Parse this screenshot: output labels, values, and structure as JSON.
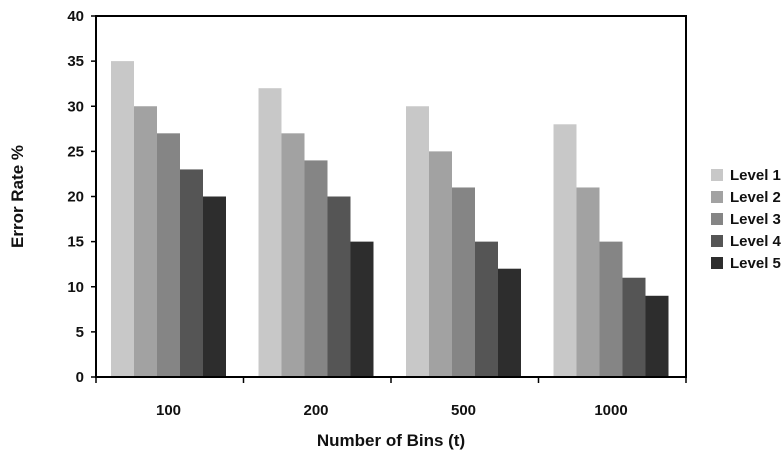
{
  "chart_data": {
    "type": "bar",
    "title": "",
    "xlabel": "Number of Bins (t)",
    "ylabel": "Error Rate %",
    "categories": [
      "100",
      "200",
      "500",
      "1000"
    ],
    "ylim": [
      0,
      40
    ],
    "yticks": [
      0,
      5,
      10,
      15,
      20,
      25,
      30,
      35,
      40
    ],
    "grid": false,
    "legend_position": "right",
    "series": [
      {
        "name": "Level 1",
        "color": "#c8c8c8",
        "values": [
          35,
          32,
          30,
          28
        ]
      },
      {
        "name": "Level 2",
        "color": "#a2a2a2",
        "values": [
          30,
          27,
          25,
          21
        ]
      },
      {
        "name": "Level 3",
        "color": "#858585",
        "values": [
          27,
          24,
          21,
          15
        ]
      },
      {
        "name": "Level 4",
        "color": "#555555",
        "values": [
          23,
          20,
          15,
          11
        ]
      },
      {
        "name": "Level 5",
        "color": "#2d2d2d",
        "values": [
          20,
          15,
          12,
          9
        ]
      }
    ]
  }
}
